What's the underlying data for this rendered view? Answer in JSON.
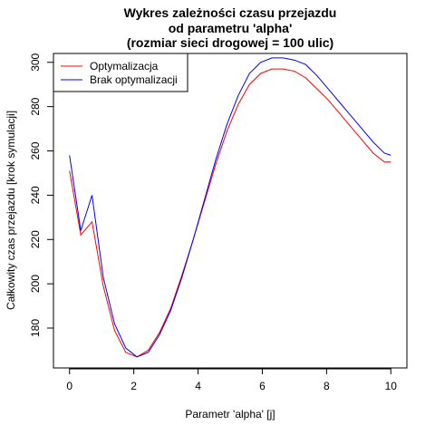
{
  "chart_data": {
    "type": "line",
    "title_lines": [
      "Wykres zależności czasu przejazdu",
      "od parametru 'alpha'",
      "(rozmiar sieci drogowej = 100 ulic)"
    ],
    "xlabel": "Parametr 'alpha' [j]",
    "ylabel": "Całkowity czas przejazdu [krok symulacji]",
    "xlim": [
      -0.5,
      10.5
    ],
    "ylim": [
      162,
      304
    ],
    "xticks": [
      "0",
      "2",
      "4",
      "6",
      "8",
      "10"
    ],
    "yticks": [
      "180",
      "200",
      "220",
      "240",
      "260",
      "280",
      "300"
    ],
    "legend_position": "top-left",
    "series": [
      {
        "name": "Optymalizacja",
        "color": "#ff0000",
        "x": [
          0,
          0.35,
          0.7,
          1.05,
          1.4,
          1.75,
          2.1,
          2.45,
          2.8,
          3.15,
          3.5,
          3.85,
          4.2,
          4.55,
          4.9,
          5.25,
          5.6,
          5.95,
          6.3,
          6.65,
          7.0,
          7.35,
          7.7,
          8.05,
          8.4,
          8.75,
          9.1,
          9.45,
          9.8,
          10.0
        ],
        "y": [
          251,
          222,
          228,
          199,
          179,
          169,
          167,
          170,
          178,
          189,
          204,
          220,
          237,
          254,
          269,
          281,
          290,
          295,
          297,
          297,
          296,
          293,
          288,
          283,
          277,
          271,
          265,
          259,
          255,
          255
        ]
      },
      {
        "name": "Brak optymalizacji",
        "color": "#0000ff",
        "x": [
          0,
          0.35,
          0.7,
          1.05,
          1.4,
          1.75,
          2.1,
          2.45,
          2.8,
          3.15,
          3.5,
          3.85,
          4.2,
          4.55,
          4.9,
          5.25,
          5.6,
          5.95,
          6.3,
          6.65,
          7.0,
          7.35,
          7.7,
          8.05,
          8.4,
          8.75,
          9.1,
          9.45,
          9.8,
          10.0
        ],
        "y": [
          258,
          224,
          240,
          203,
          182,
          171,
          167,
          169,
          177,
          188,
          203,
          220,
          238,
          256,
          272,
          285,
          295,
          300,
          302,
          302,
          301,
          299,
          294,
          288,
          282,
          276,
          270,
          264,
          259,
          258
        ]
      }
    ]
  }
}
